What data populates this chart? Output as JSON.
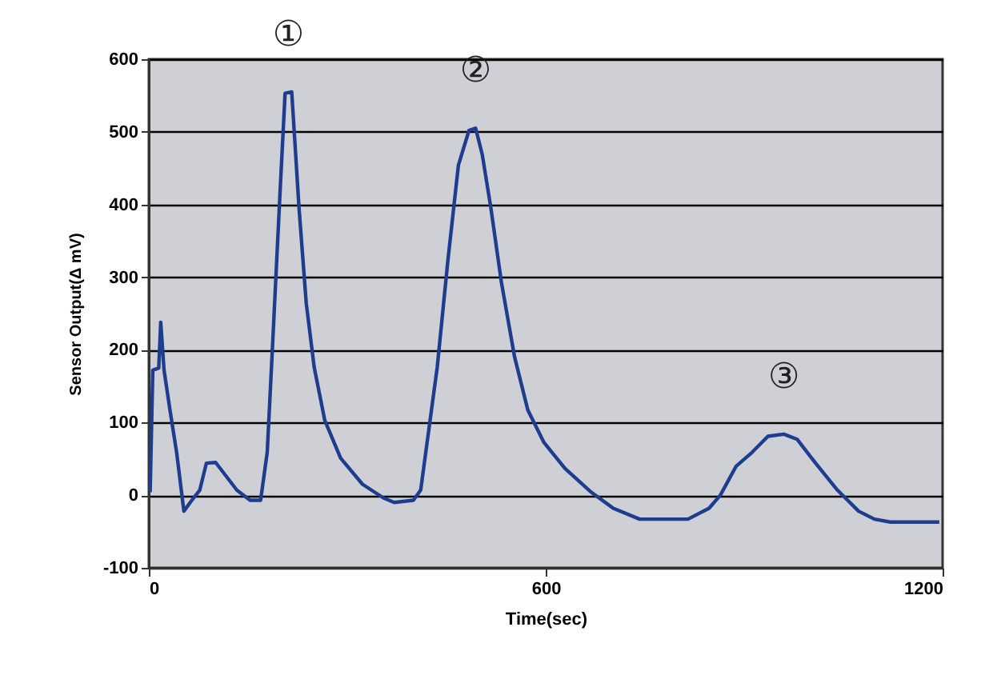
{
  "chart_data": {
    "type": "line",
    "xlabel": "Time(sec)",
    "ylabel": "Sensor Output(Δ mV)",
    "x": [
      2,
      6,
      15,
      18,
      23,
      32,
      42,
      53,
      65,
      77,
      87,
      101,
      117,
      133,
      153,
      169,
      179,
      187,
      198,
      206,
      216,
      222,
      227,
      238,
      250,
      266,
      290,
      323,
      355,
      371,
      400,
      411,
      436,
      452,
      468,
      484,
      494,
      504,
      517,
      533,
      553,
      573,
      597,
      629,
      669,
      702,
      742,
      815,
      847,
      864,
      888,
      912,
      936,
      960,
      980,
      1008,
      1041,
      1073,
      1097,
      1121,
      1195
    ],
    "series": [
      {
        "color": "#1f3d8f",
        "values": [
          4,
          172,
          175,
          238,
          172,
          117,
          59,
          -22,
          -7,
          7,
          44,
          45,
          26,
          7,
          -7,
          -7,
          59,
          205,
          410,
          553,
          555,
          469,
          396,
          264,
          176,
          103,
          51,
          15,
          -4,
          -10,
          -7,
          7,
          176,
          322,
          454,
          502,
          505,
          469,
          396,
          293,
          190,
          117,
          73,
          37,
          4,
          -18,
          -33,
          -33,
          -18,
          0,
          40,
          59,
          81,
          84,
          77,
          44,
          7,
          -22,
          -33,
          -37,
          -37
        ]
      }
    ],
    "xlim": [
      0,
      1200
    ],
    "xticks": [
      0,
      600,
      1200
    ],
    "ylim": [
      -100,
      600
    ],
    "yticks": [
      -100,
      0,
      100,
      200,
      300,
      400,
      500,
      600
    ],
    "grid": "y",
    "line_style": "solid",
    "marker": "none",
    "annotations": [
      {
        "text": "①",
        "x": 211,
        "y": 555
      },
      {
        "text": "②",
        "x": 494,
        "y": 505
      },
      {
        "text": "③",
        "x": 960,
        "y": 84
      }
    ]
  }
}
